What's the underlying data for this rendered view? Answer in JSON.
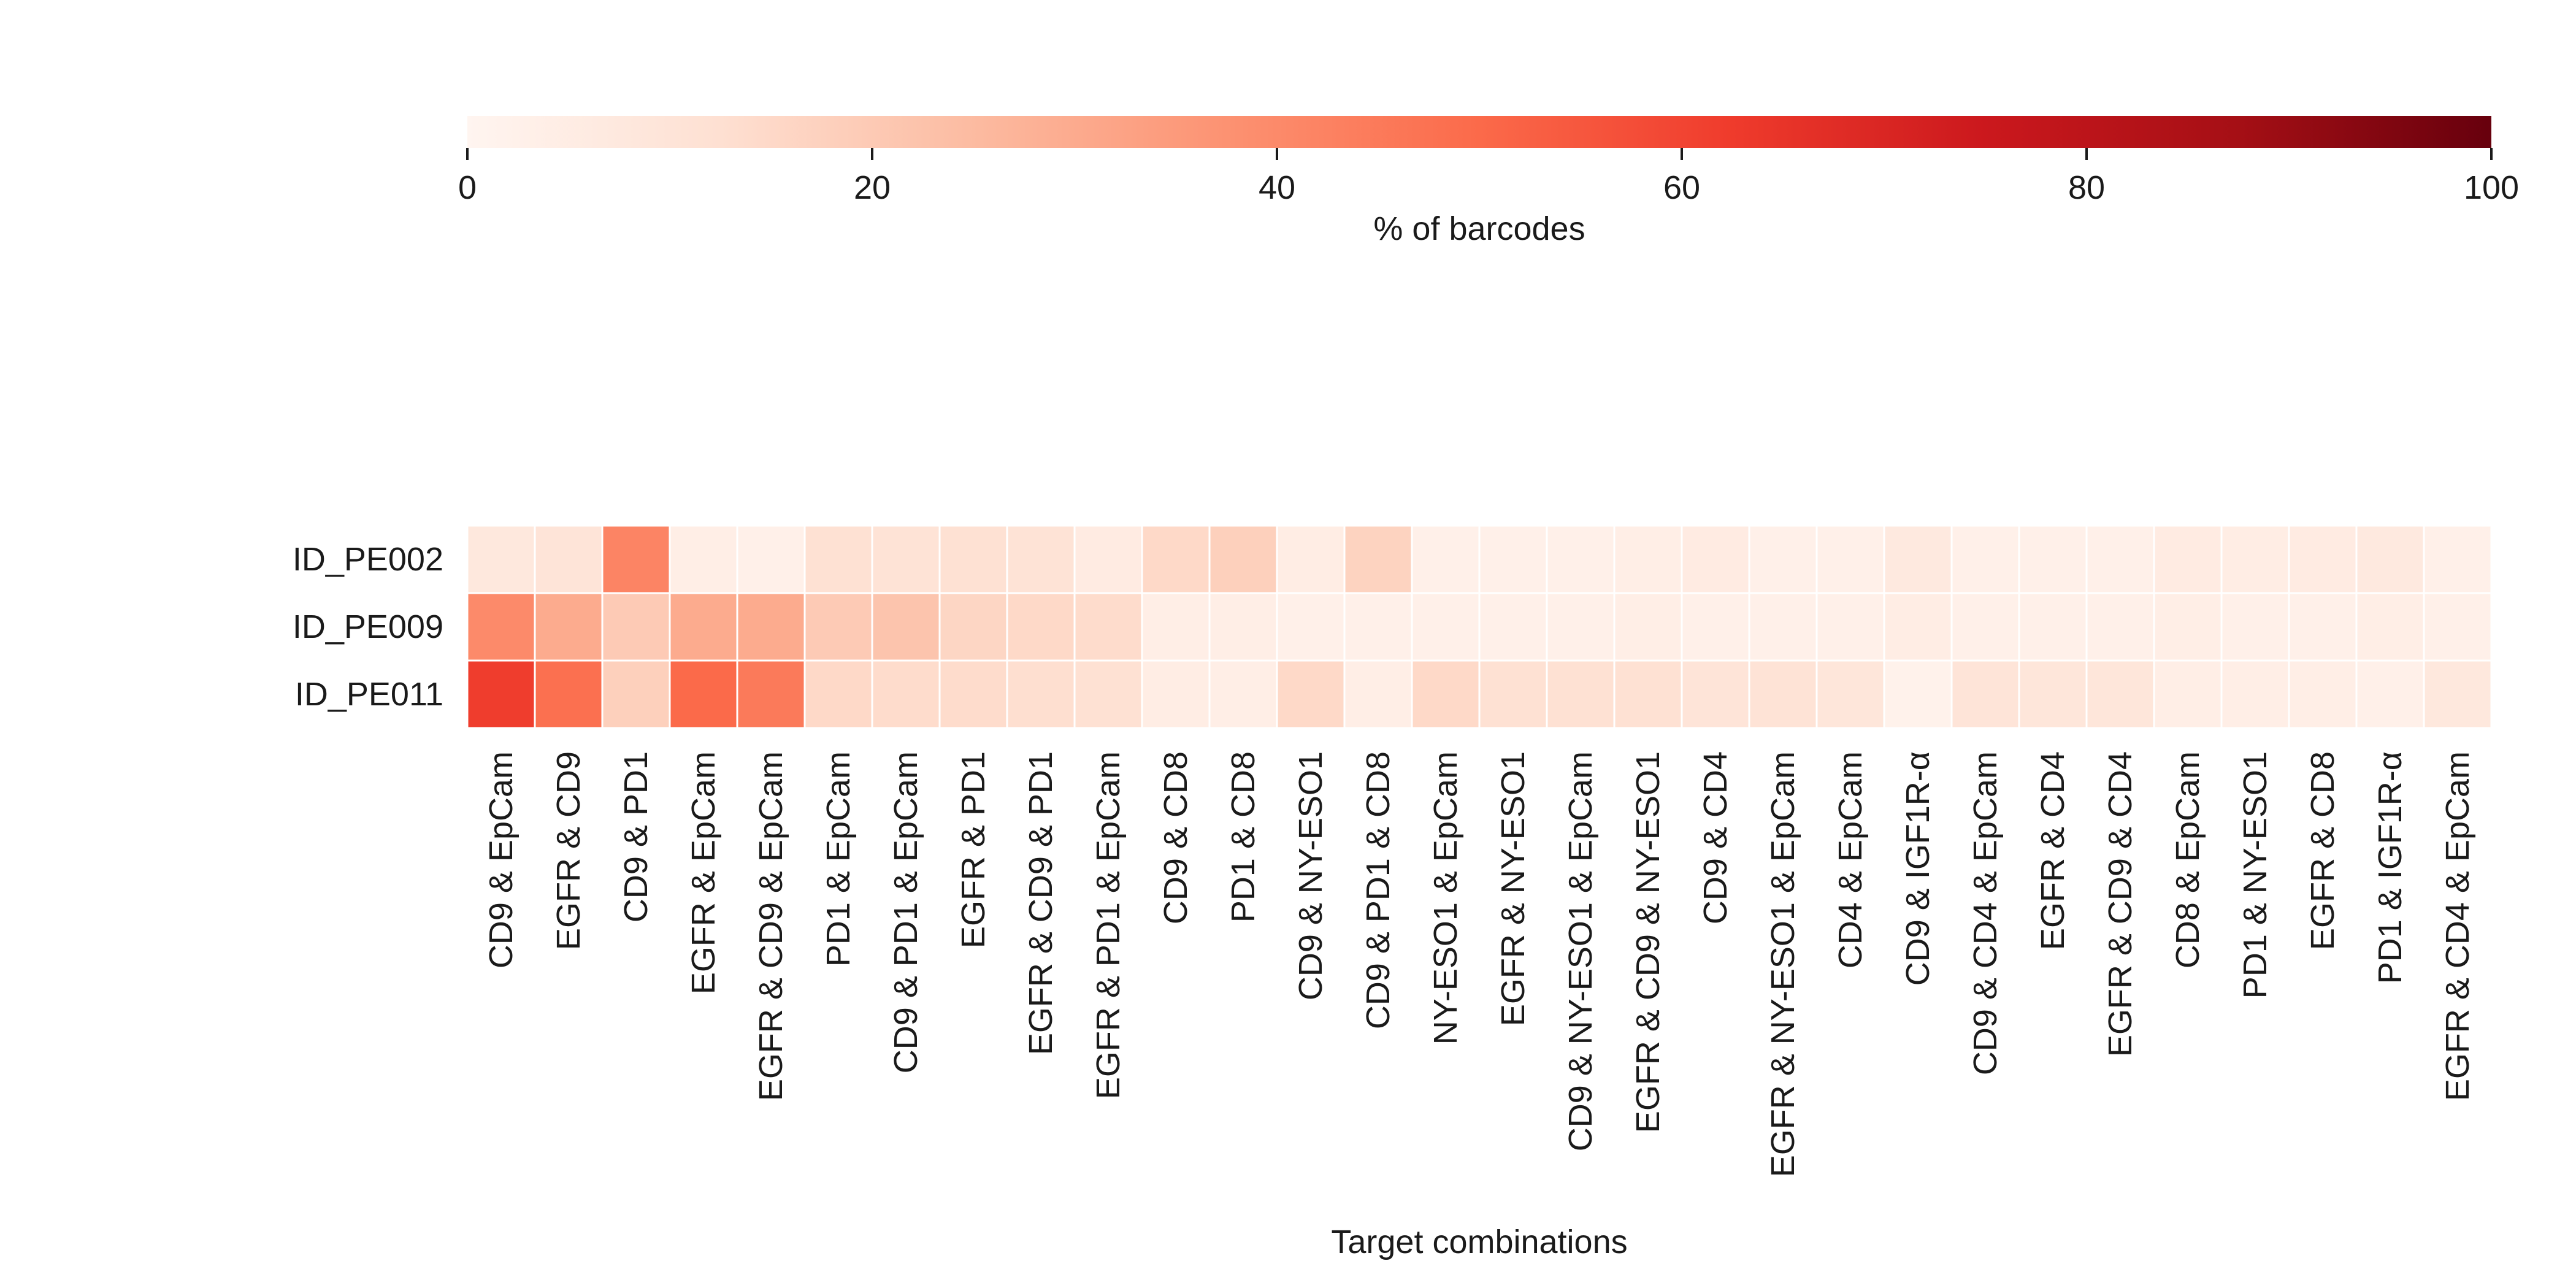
{
  "chart_data": {
    "type": "heatmap",
    "xlabel": "Target combinations",
    "ylabel": "",
    "rows": [
      "ID_PE002",
      "ID_PE009",
      "ID_PE011"
    ],
    "columns": [
      "CD9 & EpCam",
      "EGFR & CD9",
      "CD9 & PD1",
      "EGFR & EpCam",
      "EGFR & CD9 & EpCam",
      "PD1 & EpCam",
      "CD9 & PD1 & EpCam",
      "EGFR & PD1",
      "EGFR & CD9 & PD1",
      "EGFR & PD1 & EpCam",
      "CD9 & CD8",
      "PD1 & CD8",
      "CD9 & NY-ESO1",
      "CD9 & PD1 & CD8",
      "NY-ESO1 & EpCam",
      "EGFR & NY-ESO1",
      "CD9 & NY-ESO1 & EpCam",
      "EGFR & CD9 & NY-ESO1",
      "CD9 & CD4",
      "EGFR & NY-ESO1 & EpCam",
      "CD4 & EpCam",
      "CD9 & IGF1R-α",
      "CD9 & CD4 & EpCam",
      "EGFR & CD4",
      "EGFR & CD9 & CD4",
      "CD8 & EpCam",
      "PD1 & NY-ESO1",
      "EGFR & CD8",
      "PD1 & IGF1R-α",
      "EGFR & CD4 & EpCam"
    ],
    "values": [
      [
        8,
        10,
        42,
        4,
        3,
        12,
        11,
        12,
        11,
        6,
        15,
        18,
        5,
        17,
        3,
        3,
        3,
        4,
        6,
        3,
        3,
        7,
        3,
        3,
        3,
        6,
        5,
        6,
        7,
        3
      ],
      [
        40,
        30,
        20,
        30,
        30,
        20,
        22,
        16,
        15,
        14,
        4,
        4,
        3,
        3,
        3,
        3,
        3,
        4,
        3,
        3,
        3,
        5,
        3,
        3,
        3,
        4,
        3,
        3,
        4,
        3
      ],
      [
        62,
        48,
        18,
        50,
        45,
        15,
        14,
        14,
        13,
        12,
        5,
        4,
        15,
        4,
        15,
        12,
        12,
        12,
        10,
        11,
        9,
        2,
        10,
        9,
        9,
        4,
        4,
        4,
        3,
        8
      ]
    ],
    "colorbar": {
      "label": "% of barcodes",
      "min": 0,
      "max": 100,
      "ticks": [
        0,
        20,
        40,
        60,
        80,
        100
      ],
      "position": "top",
      "colormap": [
        "#fff5f0",
        "#fee0d2",
        "#fcbba1",
        "#fc9272",
        "#fb6a4a",
        "#ef3b2c",
        "#cb181d",
        "#a50f15",
        "#67000d"
      ]
    }
  }
}
